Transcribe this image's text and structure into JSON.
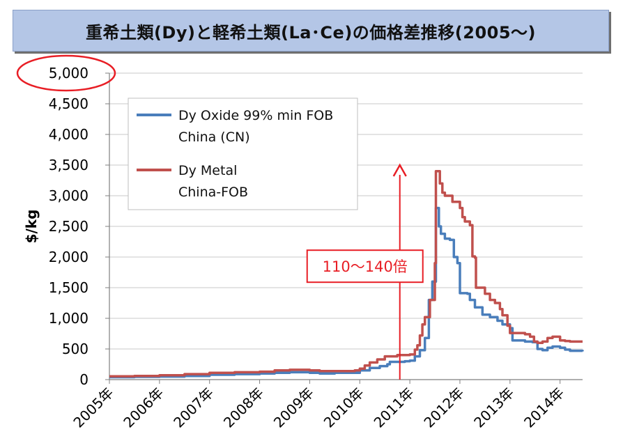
{
  "title": "重希土類(Dy)と軽希土類(La･Ce)の価格差推移(2005〜)",
  "chart_data": {
    "type": "line",
    "title": "重希土類(Dy)と軽希土類(La･Ce)の価格差推移(2005〜)",
    "ylabel": "$/kg",
    "xlabel": "",
    "ylim": [
      0,
      5000
    ],
    "xlim": [
      2005.0,
      2014.45
    ],
    "yticks": [
      0,
      500,
      1000,
      1500,
      2000,
      2500,
      3000,
      3500,
      4000,
      4500,
      5000
    ],
    "ytick_labels": [
      "0",
      "500",
      "1,000",
      "1,500",
      "2,000",
      "2,500",
      "3,000",
      "3,500",
      "4,000",
      "4,500",
      "5,000"
    ],
    "xticks": [
      2005,
      2006,
      2007,
      2008,
      2009,
      2010,
      2011,
      2012,
      2013,
      2014
    ],
    "xtick_labels": [
      "2005年",
      "2006年",
      "2007年",
      "2008年",
      "2009年",
      "2010年",
      "2011年",
      "2012年",
      "2013年",
      "2014年"
    ],
    "grid": true,
    "legend_position": "top-left",
    "annotation": {
      "text": "110〜140倍",
      "arrow_x": 2010.8,
      "arrow_from": 0,
      "arrow_to": 3500,
      "box_y": 1850,
      "color": "#e81e25"
    },
    "highlight": {
      "label": "5,000",
      "color": "#e81e25"
    },
    "series": [
      {
        "name": "Dy Oxide 99% min FOB China (CN)",
        "color": "#4a7ebb",
        "points": [
          [
            2005.0,
            40
          ],
          [
            2005.5,
            45
          ],
          [
            2006.0,
            50
          ],
          [
            2006.5,
            60
          ],
          [
            2007.0,
            80
          ],
          [
            2007.5,
            90
          ],
          [
            2008.0,
            100
          ],
          [
            2008.3,
            110
          ],
          [
            2008.6,
            120
          ],
          [
            2009.0,
            110
          ],
          [
            2009.2,
            100
          ],
          [
            2009.5,
            110
          ],
          [
            2009.9,
            110
          ],
          [
            2010.0,
            150
          ],
          [
            2010.2,
            190
          ],
          [
            2010.4,
            220
          ],
          [
            2010.55,
            250
          ],
          [
            2010.6,
            290
          ],
          [
            2010.9,
            300
          ],
          [
            2011.0,
            310
          ],
          [
            2011.1,
            380
          ],
          [
            2011.2,
            480
          ],
          [
            2011.3,
            680
          ],
          [
            2011.38,
            1300
          ],
          [
            2011.45,
            1600
          ],
          [
            2011.52,
            2800
          ],
          [
            2011.58,
            2500
          ],
          [
            2011.62,
            2380
          ],
          [
            2011.7,
            2300
          ],
          [
            2011.8,
            2280
          ],
          [
            2011.88,
            2000
          ],
          [
            2011.95,
            1900
          ],
          [
            2012.0,
            1410
          ],
          [
            2012.15,
            1400
          ],
          [
            2012.2,
            1300
          ],
          [
            2012.3,
            1180
          ],
          [
            2012.45,
            1060
          ],
          [
            2012.6,
            1020
          ],
          [
            2012.75,
            960
          ],
          [
            2012.85,
            900
          ],
          [
            2013.0,
            840
          ],
          [
            2013.05,
            640
          ],
          [
            2013.3,
            620
          ],
          [
            2013.45,
            610
          ],
          [
            2013.55,
            500
          ],
          [
            2013.65,
            480
          ],
          [
            2013.75,
            520
          ],
          [
            2013.85,
            540
          ],
          [
            2014.0,
            520
          ],
          [
            2014.1,
            490
          ],
          [
            2014.2,
            470
          ],
          [
            2014.45,
            460
          ]
        ]
      },
      {
        "name": "Dy Metal China-FOB",
        "color": "#c0504d",
        "points": [
          [
            2005.0,
            55
          ],
          [
            2005.5,
            60
          ],
          [
            2006.0,
            70
          ],
          [
            2006.5,
            90
          ],
          [
            2007.0,
            110
          ],
          [
            2007.5,
            120
          ],
          [
            2008.0,
            130
          ],
          [
            2008.3,
            150
          ],
          [
            2008.6,
            160
          ],
          [
            2009.0,
            150
          ],
          [
            2009.2,
            140
          ],
          [
            2009.5,
            140
          ],
          [
            2009.9,
            150
          ],
          [
            2010.0,
            180
          ],
          [
            2010.1,
            230
          ],
          [
            2010.2,
            280
          ],
          [
            2010.35,
            330
          ],
          [
            2010.5,
            380
          ],
          [
            2010.75,
            400
          ],
          [
            2011.0,
            410
          ],
          [
            2011.1,
            490
          ],
          [
            2011.15,
            560
          ],
          [
            2011.2,
            720
          ],
          [
            2011.25,
            900
          ],
          [
            2011.3,
            1020
          ],
          [
            2011.4,
            1300
          ],
          [
            2011.5,
            1900
          ],
          [
            2011.52,
            3400
          ],
          [
            2011.6,
            3200
          ],
          [
            2011.65,
            3050
          ],
          [
            2011.7,
            3000
          ],
          [
            2011.85,
            2900
          ],
          [
            2012.0,
            2800
          ],
          [
            2012.05,
            2650
          ],
          [
            2012.1,
            2580
          ],
          [
            2012.2,
            2520
          ],
          [
            2012.25,
            2010
          ],
          [
            2012.3,
            1990
          ],
          [
            2012.32,
            1500
          ],
          [
            2012.5,
            1400
          ],
          [
            2012.6,
            1300
          ],
          [
            2012.7,
            1250
          ],
          [
            2012.8,
            1150
          ],
          [
            2012.85,
            1050
          ],
          [
            2012.95,
            880
          ],
          [
            2013.0,
            760
          ],
          [
            2013.3,
            740
          ],
          [
            2013.4,
            700
          ],
          [
            2013.48,
            620
          ],
          [
            2013.55,
            600
          ],
          [
            2013.65,
            620
          ],
          [
            2013.75,
            680
          ],
          [
            2013.85,
            700
          ],
          [
            2014.0,
            640
          ],
          [
            2014.1,
            630
          ],
          [
            2014.2,
            620
          ],
          [
            2014.45,
            620
          ]
        ]
      }
    ]
  }
}
